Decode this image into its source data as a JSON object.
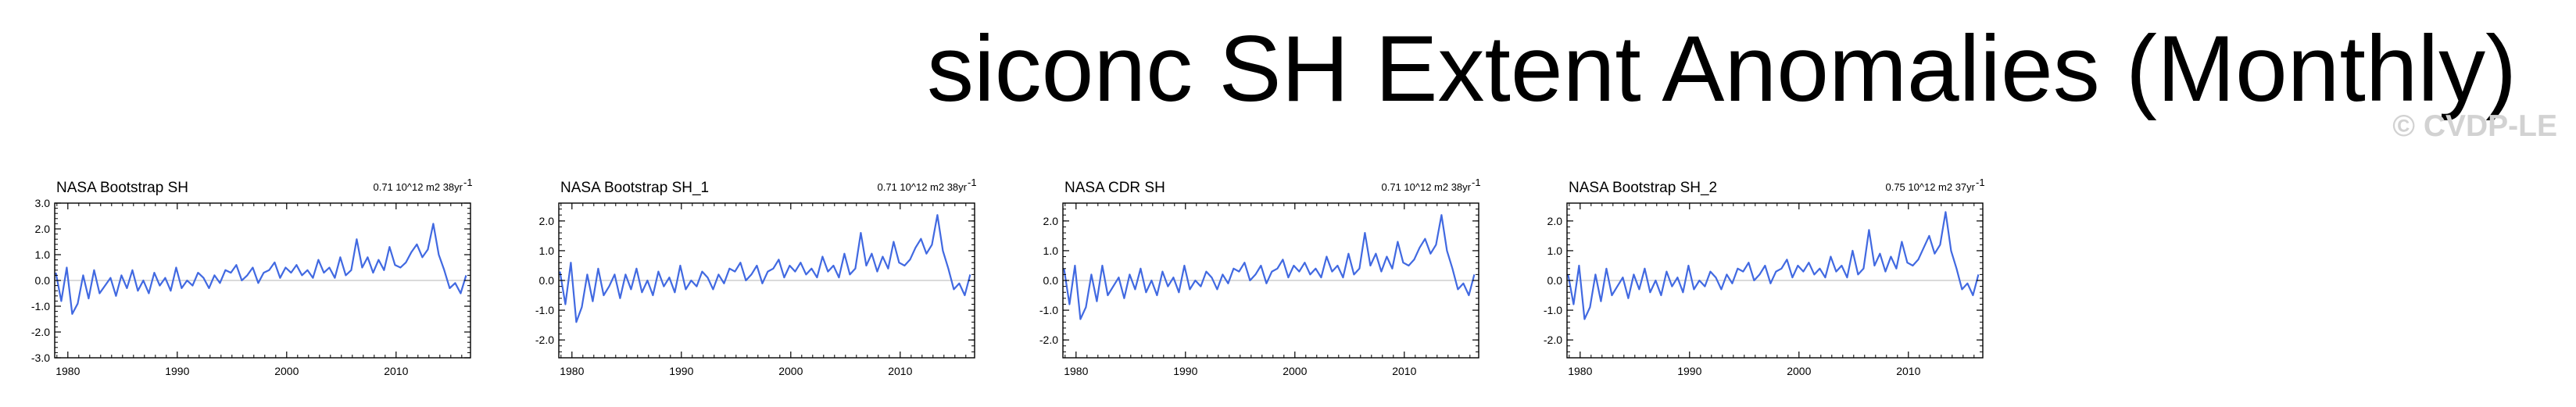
{
  "page": {
    "title": "siconc SH Extent Anomalies (Monthly)",
    "credit": "© CVDP-LE"
  },
  "style": {
    "line_color": "#4169e1",
    "axis_color": "#000000",
    "zero_line_color": "#b4b4b4",
    "credit_color": "#d2d2d2"
  },
  "chart_data": [
    {
      "type": "line",
      "title": "NASA Bootstrap SH",
      "stat_text": "0.71 10^12 m2 38yr",
      "stat_superscript": "-1",
      "xlim": [
        1978.8,
        2016.8
      ],
      "ylim": [
        -3.0,
        3.0
      ],
      "xticks": [
        1980,
        1990,
        2000,
        2010
      ],
      "xtick_labels": [
        "1980",
        "1990",
        "2000",
        "2010"
      ],
      "yticks": [
        -3.0,
        -2.0,
        -1.0,
        0.0,
        1.0,
        2.0,
        3.0
      ],
      "ytick_labels": [
        "-3.0",
        "-2.0",
        "-1.0",
        "0.0",
        "1.0",
        "2.0",
        "3.0"
      ],
      "grid": false,
      "series": [
        {
          "x_start": 1978.9,
          "x_step": 0.5,
          "values": [
            0.3,
            -0.8,
            0.5,
            -1.3,
            -0.9,
            0.2,
            -0.7,
            0.4,
            -0.5,
            -0.2,
            0.1,
            -0.6,
            0.2,
            -0.3,
            0.4,
            -0.4,
            0.0,
            -0.5,
            0.3,
            -0.2,
            0.1,
            -0.4,
            0.5,
            -0.3,
            0.0,
            -0.2,
            0.3,
            0.1,
            -0.3,
            0.2,
            -0.1,
            0.4,
            0.3,
            0.6,
            0.0,
            0.2,
            0.5,
            -0.1,
            0.3,
            0.4,
            0.7,
            0.1,
            0.5,
            0.3,
            0.6,
            0.2,
            0.4,
            0.1,
            0.8,
            0.3,
            0.5,
            0.1,
            0.9,
            0.2,
            0.4,
            1.6,
            0.5,
            0.9,
            0.3,
            0.8,
            0.4,
            1.3,
            0.6,
            0.5,
            0.7,
            1.1,
            1.4,
            0.9,
            1.2,
            2.2,
            1.0,
            0.4,
            -0.3,
            -0.1,
            -0.5,
            0.2
          ]
        }
      ]
    },
    {
      "type": "line",
      "title": "NASA Bootstrap SH_1",
      "stat_text": "0.71 10^12 m2 38yr",
      "stat_superscript": "-1",
      "xlim": [
        1978.8,
        2016.8
      ],
      "ylim": [
        -2.6,
        2.6
      ],
      "xticks": [
        1980,
        1990,
        2000,
        2010
      ],
      "xtick_labels": [
        "1980",
        "1990",
        "2000",
        "2010"
      ],
      "yticks": [
        -2.0,
        -1.0,
        0.0,
        1.0,
        2.0
      ],
      "ytick_labels": [
        "-2.0",
        "-1.0",
        "0.0",
        "1.0",
        "2.0"
      ],
      "grid": false,
      "series": [
        {
          "x_start": 1978.9,
          "x_step": 0.5,
          "values": [
            0.3,
            -0.8,
            0.6,
            -1.4,
            -0.9,
            0.2,
            -0.7,
            0.4,
            -0.5,
            -0.2,
            0.2,
            -0.6,
            0.2,
            -0.3,
            0.4,
            -0.4,
            0.0,
            -0.5,
            0.3,
            -0.2,
            0.1,
            -0.4,
            0.5,
            -0.3,
            0.0,
            -0.2,
            0.3,
            0.1,
            -0.3,
            0.2,
            -0.1,
            0.4,
            0.3,
            0.6,
            0.0,
            0.2,
            0.5,
            -0.1,
            0.3,
            0.4,
            0.7,
            0.1,
            0.5,
            0.3,
            0.6,
            0.2,
            0.4,
            0.1,
            0.8,
            0.3,
            0.5,
            0.1,
            0.9,
            0.2,
            0.4,
            1.6,
            0.5,
            0.9,
            0.3,
            0.8,
            0.4,
            1.3,
            0.6,
            0.5,
            0.7,
            1.1,
            1.4,
            0.9,
            1.2,
            2.2,
            1.0,
            0.4,
            -0.3,
            -0.1,
            -0.5,
            0.2
          ]
        }
      ]
    },
    {
      "type": "line",
      "title": "NASA CDR SH",
      "stat_text": "0.71 10^12 m2 38yr",
      "stat_superscript": "-1",
      "xlim": [
        1978.8,
        2016.8
      ],
      "ylim": [
        -2.6,
        2.6
      ],
      "xticks": [
        1980,
        1990,
        2000,
        2010
      ],
      "xtick_labels": [
        "1980",
        "1990",
        "2000",
        "2010"
      ],
      "yticks": [
        -2.0,
        -1.0,
        0.0,
        1.0,
        2.0
      ],
      "ytick_labels": [
        "-2.0",
        "-1.0",
        "0.0",
        "1.0",
        "2.0"
      ],
      "grid": false,
      "series": [
        {
          "x_start": 1978.9,
          "x_step": 0.5,
          "values": [
            0.4,
            -0.8,
            0.5,
            -1.3,
            -0.9,
            0.2,
            -0.7,
            0.5,
            -0.5,
            -0.2,
            0.1,
            -0.6,
            0.2,
            -0.3,
            0.4,
            -0.4,
            0.0,
            -0.5,
            0.3,
            -0.2,
            0.1,
            -0.4,
            0.5,
            -0.3,
            0.0,
            -0.2,
            0.3,
            0.1,
            -0.3,
            0.2,
            -0.1,
            0.4,
            0.3,
            0.6,
            0.0,
            0.2,
            0.5,
            -0.1,
            0.3,
            0.4,
            0.7,
            0.1,
            0.5,
            0.3,
            0.6,
            0.2,
            0.4,
            0.1,
            0.8,
            0.3,
            0.5,
            0.1,
            0.9,
            0.2,
            0.4,
            1.6,
            0.5,
            0.9,
            0.3,
            0.8,
            0.4,
            1.3,
            0.6,
            0.5,
            0.7,
            1.1,
            1.4,
            0.9,
            1.2,
            2.2,
            1.0,
            0.4,
            -0.3,
            -0.1,
            -0.5,
            0.2
          ]
        }
      ]
    },
    {
      "type": "line",
      "title": "NASA Bootstrap SH_2",
      "stat_text": "0.75 10^12 m2 37yr",
      "stat_superscript": "-1",
      "xlim": [
        1978.8,
        2016.8
      ],
      "ylim": [
        -2.6,
        2.6
      ],
      "xticks": [
        1980,
        1990,
        2000,
        2010
      ],
      "xtick_labels": [
        "1980",
        "1990",
        "2000",
        "2010"
      ],
      "yticks": [
        -2.0,
        -1.0,
        0.0,
        1.0,
        2.0
      ],
      "ytick_labels": [
        "-2.0",
        "-1.0",
        "0.0",
        "1.0",
        "2.0"
      ],
      "grid": false,
      "series": [
        {
          "x_start": 1978.9,
          "x_step": 0.5,
          "values": [
            0.2,
            -0.8,
            0.5,
            -1.3,
            -0.9,
            0.2,
            -0.7,
            0.4,
            -0.5,
            -0.2,
            0.1,
            -0.6,
            0.2,
            -0.3,
            0.4,
            -0.4,
            0.0,
            -0.5,
            0.3,
            -0.2,
            0.1,
            -0.4,
            0.5,
            -0.3,
            0.0,
            -0.2,
            0.3,
            0.1,
            -0.3,
            0.2,
            -0.1,
            0.4,
            0.3,
            0.6,
            0.0,
            0.2,
            0.5,
            -0.1,
            0.3,
            0.4,
            0.7,
            0.1,
            0.5,
            0.3,
            0.6,
            0.2,
            0.4,
            0.1,
            0.8,
            0.3,
            0.5,
            0.1,
            1.0,
            0.2,
            0.4,
            1.7,
            0.5,
            0.9,
            0.3,
            0.8,
            0.4,
            1.3,
            0.6,
            0.5,
            0.7,
            1.1,
            1.5,
            0.9,
            1.2,
            2.3,
            1.0,
            0.4,
            -0.3,
            -0.1,
            -0.5,
            0.2
          ]
        }
      ]
    }
  ]
}
